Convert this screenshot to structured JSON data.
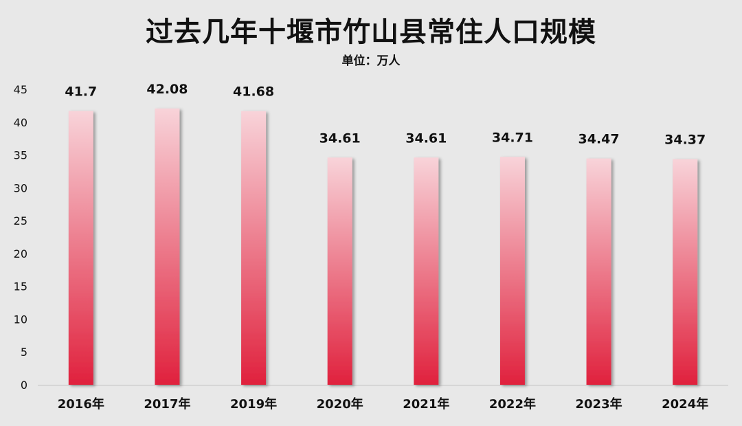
{
  "chart_data": {
    "type": "bar",
    "title": "过去几年十堰市竹山县常住人口规模",
    "subtitle": "单位：万人",
    "categories": [
      "2016年",
      "2017年",
      "2019年",
      "2020年",
      "2021年",
      "2022年",
      "2023年",
      "2024年"
    ],
    "values": [
      41.7,
      42.08,
      41.68,
      34.61,
      34.61,
      34.71,
      34.47,
      34.37
    ],
    "value_labels": [
      "41.7",
      "42.08",
      "41.68",
      "34.61",
      "34.61",
      "34.71",
      "34.47",
      "34.37"
    ],
    "yticks": [
      "0",
      "5",
      "10",
      "15",
      "20",
      "25",
      "30",
      "35",
      "40",
      "45"
    ],
    "ylim": [
      0,
      45
    ],
    "grid": false,
    "legend": "none",
    "colors": {
      "bar_top": "#f8d3d9",
      "bar_bottom": "#e0213d",
      "background": "#e8e8e8",
      "text": "#111111"
    }
  }
}
